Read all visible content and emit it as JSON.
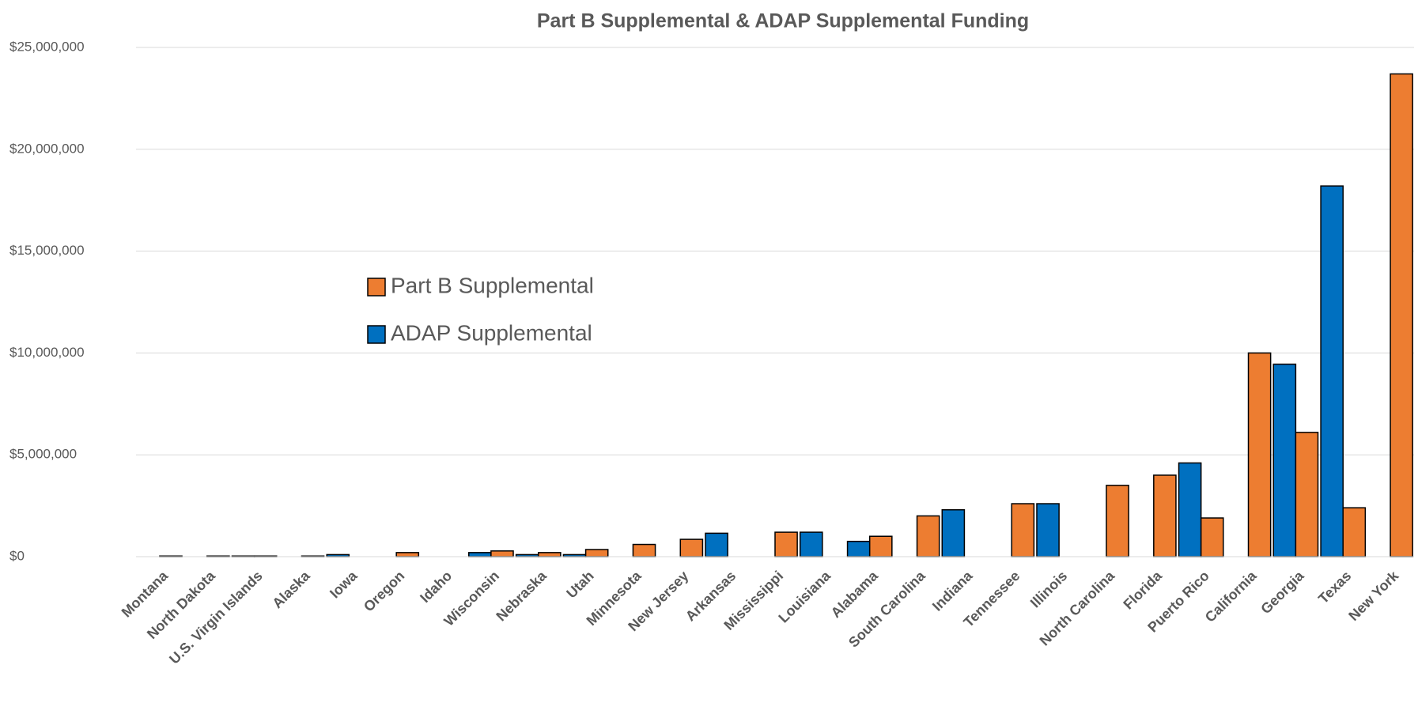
{
  "chart_data": {
    "type": "bar",
    "title": "Part B Supplemental & ADAP Supplemental Funding",
    "categories": [
      "Montana",
      "North Dakota",
      "U.S. Virgin Islands",
      "Alaska",
      "Iowa",
      "Oregon",
      "Idaho",
      "Wisconsin",
      "Nebraska",
      "Utah",
      "Minnesota",
      "New Jersey",
      "Arkansas",
      "Mississippi",
      "Louisiana",
      "Alabama",
      "South Carolina",
      "Indiana",
      "Tennessee",
      "Illinois",
      "North Carolina",
      "Florida",
      "Puerto Rico",
      "California",
      "Georgia",
      "Texas",
      "New York"
    ],
    "series": [
      {
        "name": "Part B Supplemental",
        "color": "#ed7d31",
        "values": [
          30000,
          30000,
          30000,
          30000,
          0,
          200000,
          0,
          280000,
          200000,
          350000,
          600000,
          850000,
          0,
          1200000,
          0,
          1000000,
          2000000,
          0,
          2600000,
          0,
          3500000,
          4000000,
          1900000,
          10000000,
          6100000,
          2400000,
          23700000
        ]
      },
      {
        "name": "ADAP Supplemental",
        "color": "#0070c0",
        "values": [
          0,
          0,
          30000,
          0,
          100000,
          0,
          0,
          200000,
          100000,
          100000,
          0,
          0,
          1150000,
          0,
          1200000,
          750000,
          0,
          2300000,
          0,
          2600000,
          0,
          0,
          4600000,
          0,
          9450000,
          18200000,
          0
        ]
      }
    ],
    "ylim": [
      0,
      25000000
    ],
    "yticks": [
      {
        "value": 0,
        "label": "$0"
      },
      {
        "value": 5000000,
        "label": "$5,000,000"
      },
      {
        "value": 10000000,
        "label": "$10,000,000"
      },
      {
        "value": 15000000,
        "label": "$15,000,000"
      },
      {
        "value": 20000000,
        "label": "$20,000,000"
      },
      {
        "value": 25000000,
        "label": "$25,000,000"
      }
    ],
    "grid": true
  }
}
